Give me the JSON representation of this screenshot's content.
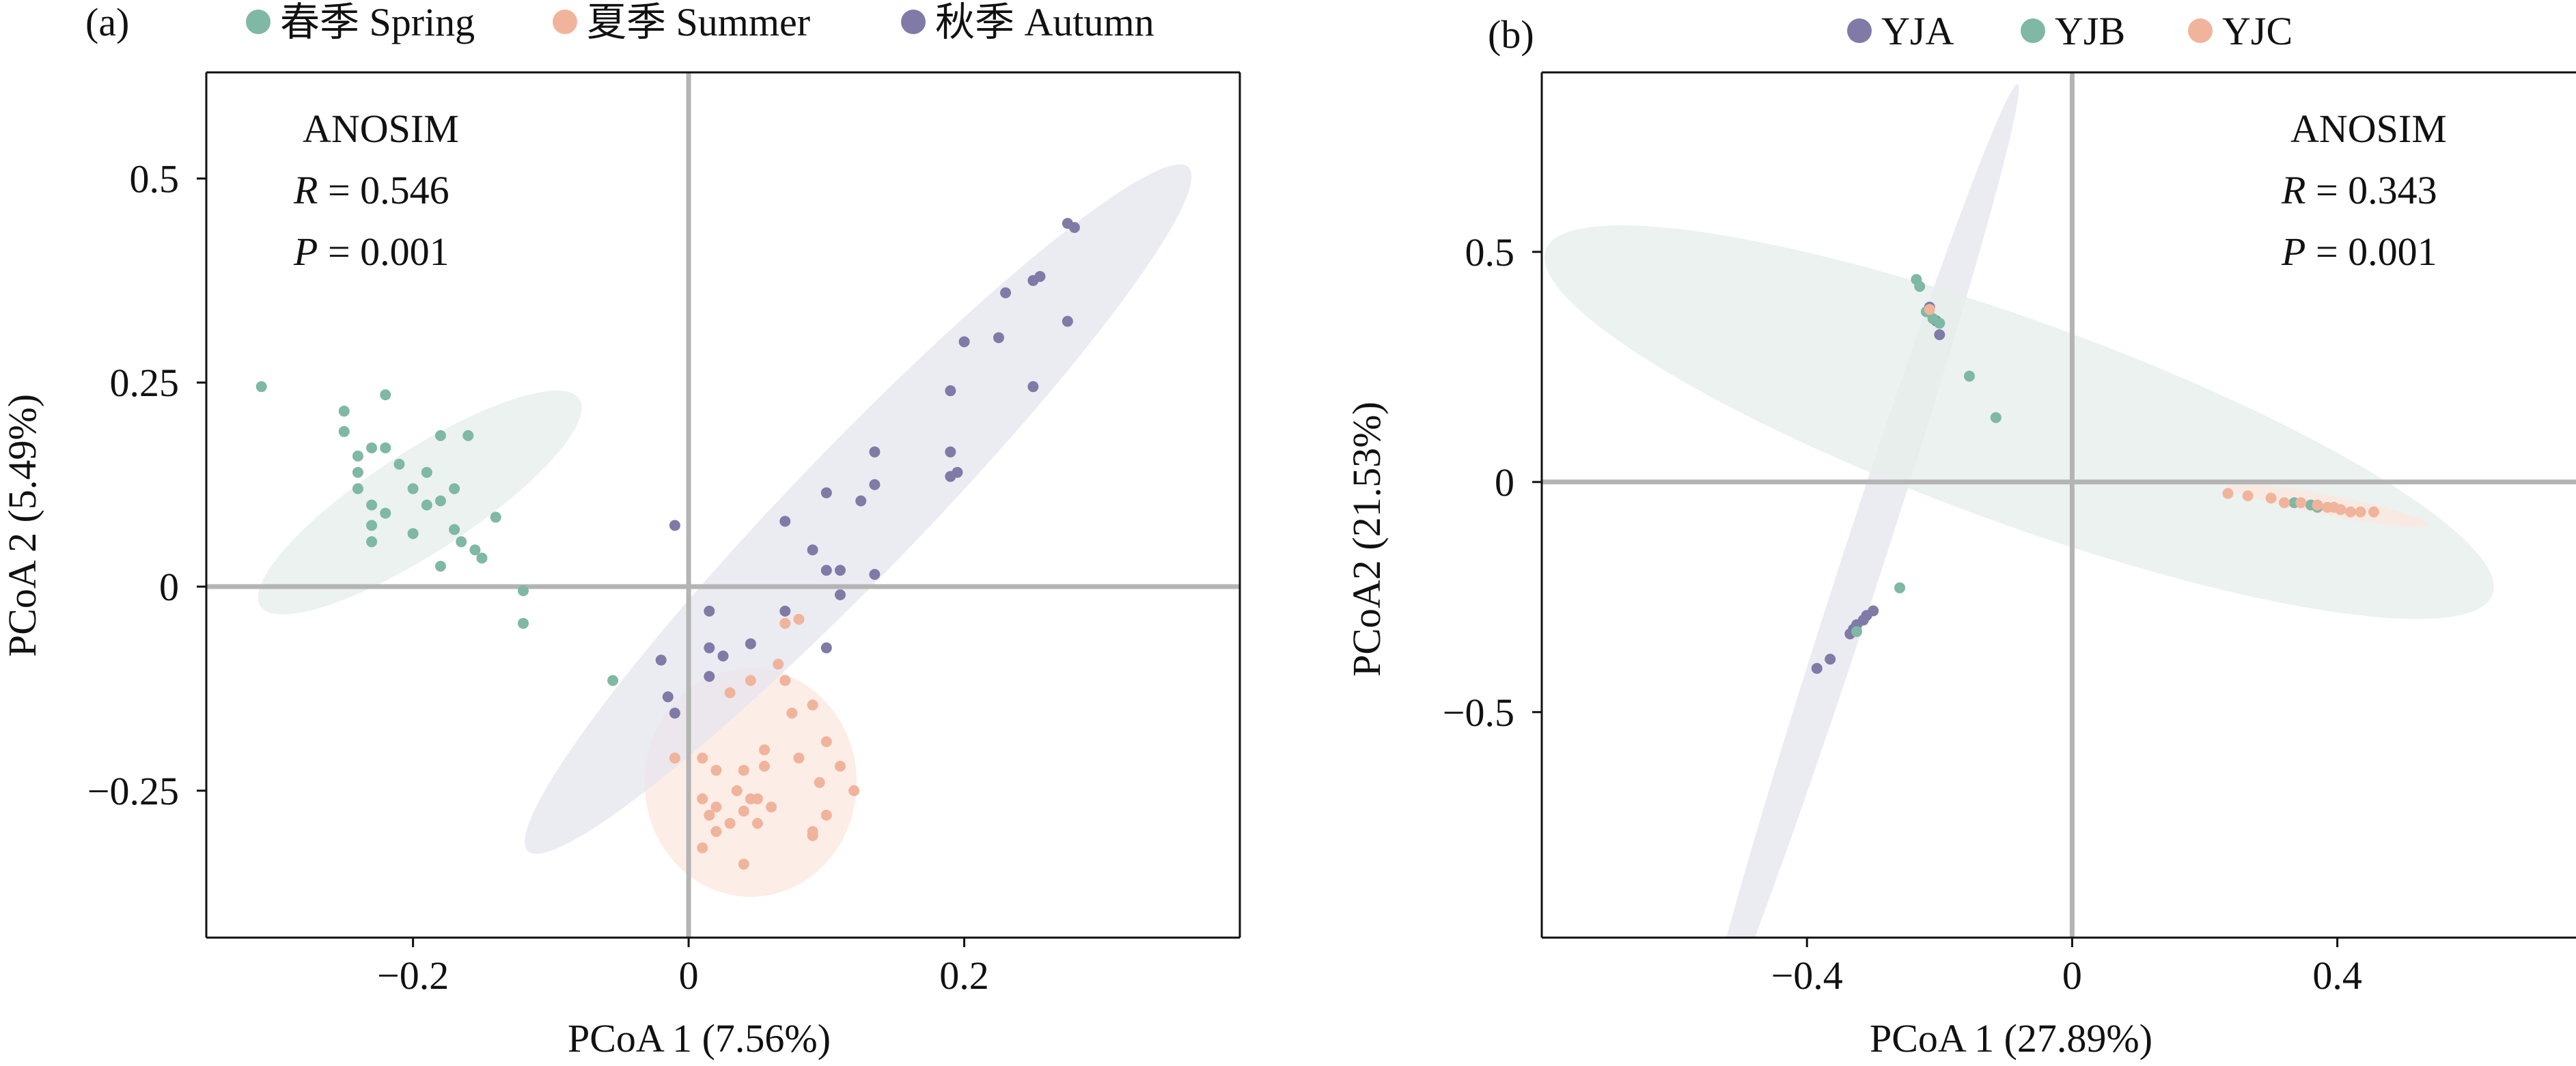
{
  "chart_data": [
    {
      "panel_label": "(a)",
      "type": "scatter",
      "xlabel": "PCoA 1 (7.56%)",
      "ylabel": "PCoA 2 (5.49%)",
      "xlim": [
        -0.35,
        0.4
      ],
      "ylim": [
        -0.43,
        0.63
      ],
      "xticks": [
        -0.2,
        0,
        0.2
      ],
      "xtick_labels": [
        "−0.2",
        "0",
        "0.2"
      ],
      "yticks": [
        -0.25,
        0,
        0.25,
        0.5
      ],
      "ytick_labels": [
        "−0.25",
        "0",
        "0.25",
        "0.5"
      ],
      "zero_lines": true,
      "legend_position": "top",
      "annotation": {
        "title": "ANOSIM",
        "r_label": "R",
        "r_value": " = 0.546",
        "p_label": "P",
        "p_value": " = 0.001"
      },
      "series": [
        {
          "name": "春季 Spring",
          "color": "#7fb8a4",
          "ellipse_fill": "#e5eeea",
          "ellipse": {
            "cx": -0.195,
            "cy": 0.103,
            "rx": 0.138,
            "ry": 0.062,
            "angle_deg": -33
          },
          "points": [
            [
              -0.31,
              0.245
            ],
            [
              -0.25,
              0.215
            ],
            [
              -0.25,
              0.19
            ],
            [
              -0.22,
              0.235
            ],
            [
              -0.24,
              0.16
            ],
            [
              -0.24,
              0.14
            ],
            [
              -0.23,
              0.17
            ],
            [
              -0.22,
              0.17
            ],
            [
              -0.24,
              0.12
            ],
            [
              -0.23,
              0.1
            ],
            [
              -0.21,
              0.15
            ],
            [
              -0.19,
              0.14
            ],
            [
              -0.18,
              0.185
            ],
            [
              -0.16,
              0.185
            ],
            [
              -0.2,
              0.12
            ],
            [
              -0.17,
              0.12
            ],
            [
              -0.18,
              0.105
            ],
            [
              -0.23,
              0.075
            ],
            [
              -0.22,
              0.09
            ],
            [
              -0.19,
              0.1
            ],
            [
              -0.17,
              0.07
            ],
            [
              -0.14,
              0.085
            ],
            [
              -0.165,
              0.055
            ],
            [
              -0.155,
              0.045
            ],
            [
              -0.15,
              0.035
            ],
            [
              -0.23,
              0.055
            ],
            [
              -0.2,
              0.065
            ],
            [
              -0.18,
              0.025
            ],
            [
              -0.12,
              -0.005
            ],
            [
              -0.12,
              -0.045
            ],
            [
              -0.055,
              -0.115
            ]
          ]
        },
        {
          "name": "夏季 Summer",
          "color": "#f0b49c",
          "ellipse_fill": "#fbe8df",
          "ellipse": {
            "cx": 0.045,
            "cy": -0.24,
            "rx": 0.077,
            "ry": 0.14,
            "angle_deg": 0
          },
          "points": [
            [
              0.08,
              -0.04
            ],
            [
              0.07,
              -0.045
            ],
            [
              0.065,
              -0.095
            ],
            [
              0.07,
              -0.115
            ],
            [
              0.045,
              -0.115
            ],
            [
              0.03,
              -0.13
            ],
            [
              0.09,
              -0.145
            ],
            [
              0.075,
              -0.155
            ],
            [
              0.055,
              -0.2
            ],
            [
              0.1,
              -0.19
            ],
            [
              0.08,
              -0.21
            ],
            [
              0.01,
              -0.21
            ],
            [
              -0.01,
              -0.21
            ],
            [
              0.02,
              -0.225
            ],
            [
              0.04,
              -0.225
            ],
            [
              0.055,
              -0.22
            ],
            [
              0.11,
              -0.22
            ],
            [
              0.095,
              -0.24
            ],
            [
              0.12,
              -0.25
            ],
            [
              0.035,
              -0.25
            ],
            [
              0.045,
              -0.26
            ],
            [
              0.05,
              -0.26
            ],
            [
              0.04,
              -0.275
            ],
            [
              0.06,
              -0.27
            ],
            [
              0.01,
              -0.26
            ],
            [
              0.02,
              -0.27
            ],
            [
              0.03,
              -0.29
            ],
            [
              0.05,
              -0.29
            ],
            [
              0.1,
              -0.28
            ],
            [
              0.09,
              -0.3
            ],
            [
              0.02,
              -0.3
            ],
            [
              0.01,
              -0.32
            ],
            [
              0.04,
              -0.34
            ],
            [
              0.09,
              -0.305
            ],
            [
              0.015,
              -0.28
            ]
          ]
        },
        {
          "name": "秋季 Autumn",
          "color": "#7f7aa6",
          "ellipse_fill": "#e6e5ee",
          "ellipse": {
            "cx": 0.123,
            "cy": 0.095,
            "rx": 0.345,
            "ry": 0.078,
            "angle_deg": -46
          },
          "points": [
            [
              0.275,
              0.445
            ],
            [
              0.28,
              0.44
            ],
            [
              0.255,
              0.38
            ],
            [
              0.25,
              0.375
            ],
            [
              0.23,
              0.36
            ],
            [
              0.275,
              0.325
            ],
            [
              0.2,
              0.3
            ],
            [
              0.225,
              0.305
            ],
            [
              0.25,
              0.245
            ],
            [
              0.19,
              0.24
            ],
            [
              0.135,
              0.165
            ],
            [
              0.19,
              0.165
            ],
            [
              0.195,
              0.14
            ],
            [
              0.19,
              0.135
            ],
            [
              0.135,
              0.125
            ],
            [
              0.1,
              0.115
            ],
            [
              0.125,
              0.105
            ],
            [
              0.07,
              0.08
            ],
            [
              -0.01,
              0.075
            ],
            [
              0.09,
              0.045
            ],
            [
              0.1,
              0.02
            ],
            [
              0.11,
              0.02
            ],
            [
              0.135,
              0.015
            ],
            [
              0.11,
              -0.01
            ],
            [
              0.015,
              -0.03
            ],
            [
              0.07,
              -0.03
            ],
            [
              0.015,
              -0.075
            ],
            [
              0.045,
              -0.07
            ],
            [
              0.1,
              -0.075
            ],
            [
              0.025,
              -0.085
            ],
            [
              -0.02,
              -0.09
            ],
            [
              0.015,
              -0.11
            ],
            [
              -0.015,
              -0.135
            ],
            [
              -0.01,
              -0.155
            ]
          ]
        }
      ]
    },
    {
      "panel_label": "(b)",
      "type": "scatter",
      "xlabel": "PCoA 1 (27.89%)",
      "ylabel": "PCoA2 (21.53%)",
      "xlim": [
        -0.8,
        0.76
      ],
      "ylim": [
        -0.99,
        0.89
      ],
      "xticks": [
        -0.4,
        0,
        0.4
      ],
      "xtick_labels": [
        "−0.4",
        "0",
        "0.4"
      ],
      "yticks": [
        -0.5,
        0,
        0.5
      ],
      "ytick_labels": [
        "−0.5",
        "0",
        "0.5"
      ],
      "zero_lines": true,
      "legend_position": "top",
      "annotation": {
        "title": "ANOSIM",
        "r_label": "R",
        "r_value": " = 0.343",
        "p_label": "P",
        "p_value": " = 0.001"
      },
      "series": [
        {
          "name": "YJA",
          "color": "#7f7aa6",
          "ellipse_fill": "#e6e5ee",
          "ellipse": {
            "cx": -0.32,
            "cy": -0.19,
            "rx": 0.77,
            "ry": 0.045,
            "angle_deg": -72
          },
          "points": [
            [
              -0.215,
              0.38
            ],
            [
              -0.205,
              0.35
            ],
            [
              -0.2,
              0.32
            ],
            [
              -0.3,
              -0.28
            ],
            [
              -0.31,
              -0.29
            ],
            [
              -0.315,
              -0.3
            ],
            [
              -0.325,
              -0.31
            ],
            [
              -0.33,
              -0.32
            ],
            [
              -0.335,
              -0.33
            ],
            [
              -0.365,
              -0.385
            ],
            [
              -0.385,
              -0.405
            ]
          ]
        },
        {
          "name": "YJB",
          "color": "#7fb8a4",
          "ellipse_fill": "#e5eeea",
          "ellipse": {
            "cx": -0.08,
            "cy": 0.13,
            "rx": 0.76,
            "ry": 0.22,
            "angle_deg": 20
          },
          "points": [
            [
              -0.235,
              0.44
            ],
            [
              -0.23,
              0.425
            ],
            [
              -0.22,
              0.37
            ],
            [
              -0.21,
              0.355
            ],
            [
              -0.2,
              0.345
            ],
            [
              -0.155,
              0.23
            ],
            [
              -0.115,
              0.14
            ],
            [
              -0.26,
              -0.23
            ],
            [
              -0.325,
              -0.325
            ],
            [
              0.335,
              -0.045
            ],
            [
              0.36,
              -0.05
            ],
            [
              0.37,
              -0.055
            ]
          ]
        },
        {
          "name": "YJC",
          "color": "#f0b49c",
          "ellipse_fill": "#fbe8df",
          "ellipse": {
            "cx": 0.385,
            "cy": -0.05,
            "rx": 0.155,
            "ry": 0.022,
            "angle_deg": 11
          },
          "points": [
            [
              -0.215,
              0.375
            ],
            [
              0.235,
              -0.025
            ],
            [
              0.265,
              -0.03
            ],
            [
              0.3,
              -0.035
            ],
            [
              0.32,
              -0.045
            ],
            [
              0.345,
              -0.045
            ],
            [
              0.37,
              -0.05
            ],
            [
              0.385,
              -0.055
            ],
            [
              0.395,
              -0.055
            ],
            [
              0.405,
              -0.06
            ],
            [
              0.42,
              -0.065
            ],
            [
              0.435,
              -0.065
            ],
            [
              0.455,
              -0.065
            ]
          ]
        }
      ]
    }
  ]
}
